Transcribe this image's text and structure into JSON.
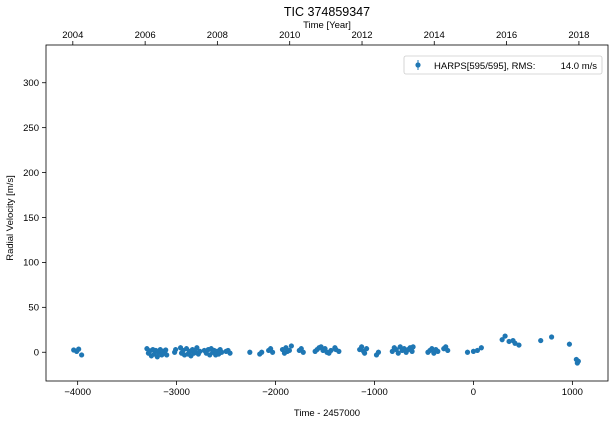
{
  "chart_data": {
    "type": "scatter",
    "title": "TIC 374859347",
    "xlabel": "Time - 2457000",
    "ylabel": "Radial Velocity [m/s]",
    "top_xlabel": "Time [Year]",
    "xlim": [
      -4320,
      1360
    ],
    "ylim": [
      -32,
      342
    ],
    "xticks": [
      -4000,
      -3000,
      -2000,
      -1000,
      0,
      1000
    ],
    "xtick_labels": [
      "−4000",
      "−3000",
      "−2000",
      "−1000",
      "0",
      "1000"
    ],
    "yticks": [
      0,
      50,
      100,
      150,
      200,
      250,
      300
    ],
    "ytick_labels": [
      "0",
      "50",
      "100",
      "150",
      "200",
      "250",
      "300"
    ],
    "top_ticks": [
      {
        "label": "2004",
        "x": -4049
      },
      {
        "label": "2006",
        "x": -3318
      },
      {
        "label": "2008",
        "x": -2588
      },
      {
        "label": "2010",
        "x": -1857
      },
      {
        "label": "2012",
        "x": -1126
      },
      {
        "label": "2014",
        "x": -396
      },
      {
        "label": "2016",
        "x": 335
      },
      {
        "label": "2018",
        "x": 1066
      }
    ],
    "grid": false,
    "legend_position": "top-right",
    "color": "#1f77b4",
    "series": [
      {
        "name": "HARPS[595/595], RMS:",
        "rms": "14.0 m/s",
        "points": [
          [
            -4040,
            2.5
          ],
          [
            -4010,
            1
          ],
          [
            -3990,
            3.5
          ],
          [
            -3960,
            -3
          ],
          [
            -3300,
            4
          ],
          [
            -3285,
            -1
          ],
          [
            -3270,
            1.5
          ],
          [
            -3255,
            -4
          ],
          [
            -3240,
            3
          ],
          [
            -3225,
            -2
          ],
          [
            -3210,
            2
          ],
          [
            -3195,
            -5
          ],
          [
            -3180,
            0
          ],
          [
            -3165,
            3
          ],
          [
            -3150,
            -3
          ],
          [
            -3135,
            1
          ],
          [
            -3120,
            -1
          ],
          [
            -3110,
            2.5
          ],
          [
            -3100,
            -3
          ],
          [
            -3020,
            0
          ],
          [
            -3010,
            3
          ],
          [
            -2960,
            5
          ],
          [
            -2950,
            -1
          ],
          [
            -2935,
            2
          ],
          [
            -2920,
            -3
          ],
          [
            -2900,
            4
          ],
          [
            -2885,
            -2
          ],
          [
            -2870,
            1
          ],
          [
            -2855,
            -4
          ],
          [
            -2840,
            3
          ],
          [
            -2825,
            -1
          ],
          [
            -2810,
            0
          ],
          [
            -2795,
            5
          ],
          [
            -2780,
            -2
          ],
          [
            -2765,
            1
          ],
          [
            -2720,
            2
          ],
          [
            -2700,
            -1
          ],
          [
            -2680,
            3
          ],
          [
            -2665,
            -3
          ],
          [
            -2650,
            4
          ],
          [
            -2635,
            0
          ],
          [
            -2620,
            2
          ],
          [
            -2605,
            -3
          ],
          [
            -2590,
            1
          ],
          [
            -2575,
            -2
          ],
          [
            -2560,
            3
          ],
          [
            -2545,
            0
          ],
          [
            -2500,
            1
          ],
          [
            -2480,
            2
          ],
          [
            -2460,
            -1
          ],
          [
            -2260,
            0
          ],
          [
            -2160,
            -2
          ],
          [
            -2140,
            0
          ],
          [
            -2070,
            2
          ],
          [
            -2050,
            4
          ],
          [
            -2030,
            0
          ],
          [
            -1930,
            3
          ],
          [
            -1910,
            -1
          ],
          [
            -1895,
            5
          ],
          [
            -1880,
            1
          ],
          [
            -1860,
            2
          ],
          [
            -1840,
            7
          ],
          [
            -1760,
            2
          ],
          [
            -1740,
            4
          ],
          [
            -1720,
            0
          ],
          [
            -1600,
            1
          ],
          [
            -1580,
            3
          ],
          [
            -1560,
            5
          ],
          [
            -1540,
            6
          ],
          [
            -1520,
            2
          ],
          [
            -1500,
            4
          ],
          [
            -1480,
            0
          ],
          [
            -1460,
            -1
          ],
          [
            -1440,
            2
          ],
          [
            -1400,
            5
          ],
          [
            -1390,
            3
          ],
          [
            -1360,
            1
          ],
          [
            -1150,
            3
          ],
          [
            -1130,
            6
          ],
          [
            -1110,
            1
          ],
          [
            -1100,
            -1
          ],
          [
            -1080,
            4
          ],
          [
            -980,
            -3
          ],
          [
            -960,
            0
          ],
          [
            -820,
            1
          ],
          [
            -800,
            5
          ],
          [
            -780,
            3
          ],
          [
            -760,
            -1
          ],
          [
            -740,
            6
          ],
          [
            -720,
            2
          ],
          [
            -700,
            4
          ],
          [
            -680,
            0
          ],
          [
            -660,
            3
          ],
          [
            -640,
            5
          ],
          [
            -620,
            1
          ],
          [
            -610,
            6
          ],
          [
            -460,
            0
          ],
          [
            -440,
            2
          ],
          [
            -420,
            4
          ],
          [
            -400,
            -1
          ],
          [
            -380,
            3
          ],
          [
            -360,
            1
          ],
          [
            -300,
            4
          ],
          [
            -280,
            6
          ],
          [
            -260,
            2
          ],
          [
            -60,
            0
          ],
          [
            0,
            1
          ],
          [
            40,
            2
          ],
          [
            80,
            5
          ],
          [
            290,
            14
          ],
          [
            320,
            18
          ],
          [
            360,
            12
          ],
          [
            400,
            13
          ],
          [
            420,
            10
          ],
          [
            460,
            8
          ],
          [
            680,
            13
          ],
          [
            790,
            17
          ],
          [
            970,
            9
          ],
          [
            1040,
            -8
          ],
          [
            1050,
            -12
          ],
          [
            1060,
            -10
          ]
        ]
      }
    ]
  }
}
